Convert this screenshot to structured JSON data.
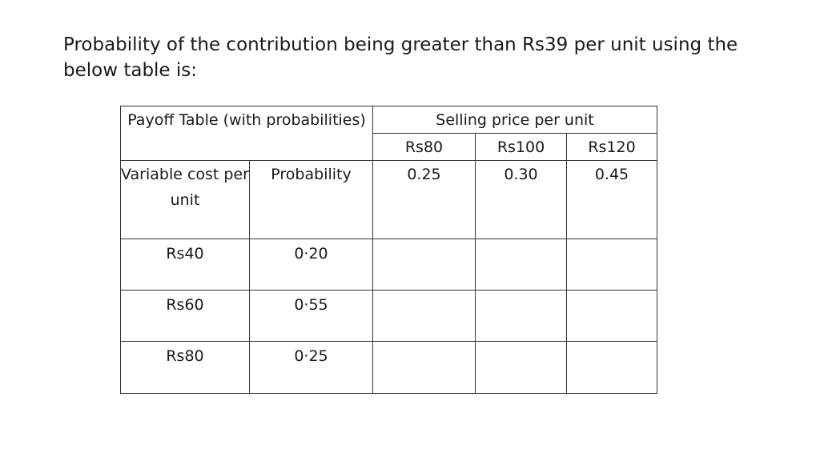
{
  "slide": {
    "title": "Probability of the contribution being greater than Rs39 per unit using the below table is:"
  },
  "table": {
    "corner_header": "Payoff Table (with probabilities)",
    "selling_price_header": "Selling price per unit",
    "selling_prices": [
      {
        "price": "Rs80",
        "probability": "0.25"
      },
      {
        "price": "Rs100",
        "probability": "0.30"
      },
      {
        "price": "Rs120",
        "probability": "0.45"
      }
    ],
    "variable_cost_header": "Variable cost per unit",
    "probability_header": "Probability",
    "rows": [
      {
        "variable_cost": "Rs40",
        "probability": "0·20",
        "cells": [
          "",
          "",
          ""
        ]
      },
      {
        "variable_cost": "Rs60",
        "probability": "0·55",
        "cells": [
          "",
          "",
          ""
        ]
      },
      {
        "variable_cost": "Rs80",
        "probability": "0·25",
        "cells": [
          "",
          "",
          ""
        ]
      }
    ]
  }
}
